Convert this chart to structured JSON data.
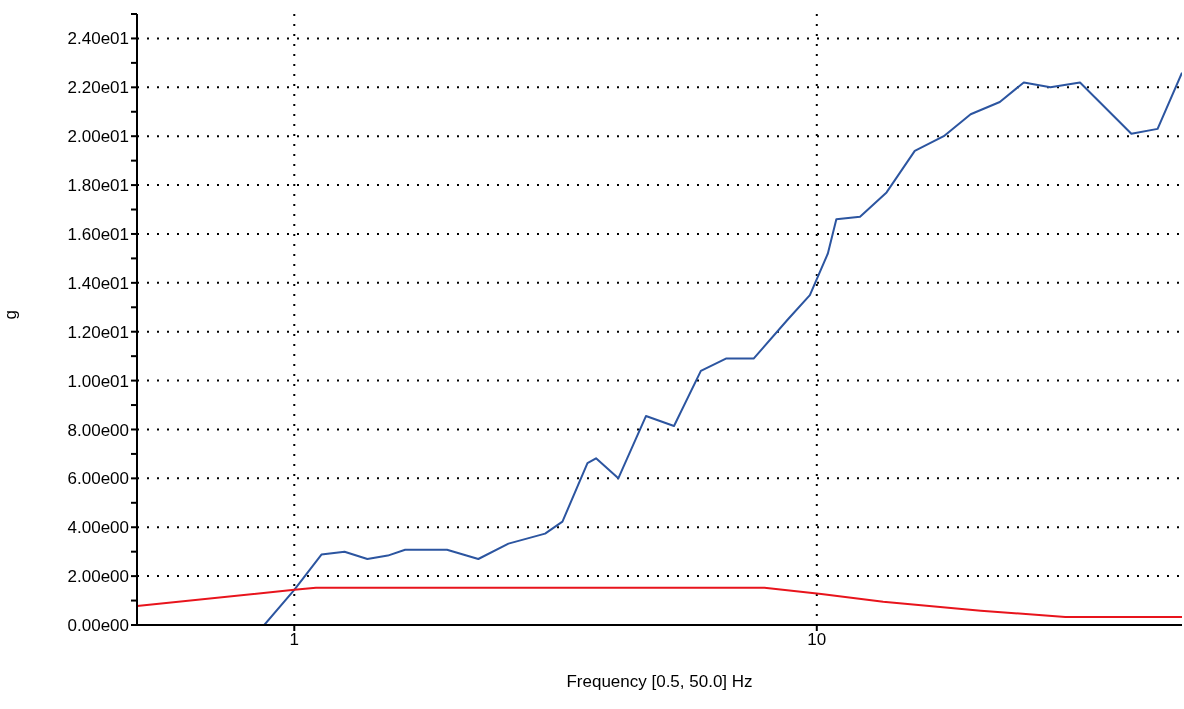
{
  "chart_data": {
    "type": "line",
    "xlabel": "Frequency [0.5, 50.0] Hz",
    "ylabel": "g",
    "log": "x",
    "xlim": [
      0.5,
      50
    ],
    "xticks": [
      1,
      10
    ],
    "ylim": [
      0,
      25
    ],
    "yticks": [
      {
        "value": 0,
        "label": "0.00e00"
      },
      {
        "value": 1,
        "label": null
      },
      {
        "value": 2,
        "label": "2.00e00"
      },
      {
        "value": 3,
        "label": null
      },
      {
        "value": 4,
        "label": "4.00e00"
      },
      {
        "value": 5,
        "label": null
      },
      {
        "value": 6,
        "label": "6.00e00"
      },
      {
        "value": 7,
        "label": null
      },
      {
        "value": 8,
        "label": "8.00e00"
      },
      {
        "value": 9,
        "label": null
      },
      {
        "value": 10,
        "label": "1.00e01"
      },
      {
        "value": 11,
        "label": null
      },
      {
        "value": 12,
        "label": "1.20e01"
      },
      {
        "value": 13,
        "label": null
      },
      {
        "value": 14,
        "label": "1.40e01"
      },
      {
        "value": 15,
        "label": null
      },
      {
        "value": 16,
        "label": "1.60e01"
      },
      {
        "value": 17,
        "label": null
      },
      {
        "value": 18,
        "label": "1.80e01"
      },
      {
        "value": 19,
        "label": null
      },
      {
        "value": 20,
        "label": "2.00e01"
      },
      {
        "value": 21,
        "label": null
      },
      {
        "value": 22,
        "label": "2.20e01"
      },
      {
        "value": 23,
        "label": null
      },
      {
        "value": 24,
        "label": "2.40e01"
      },
      {
        "value": 25,
        "label": null
      }
    ],
    "grid": true,
    "legend": false,
    "marker": "none",
    "line_style": "solid",
    "series": [
      {
        "color": "#2c55a0",
        "x": [
          0.5,
          0.876,
          1.0,
          1.127,
          1.248,
          1.38,
          1.51,
          1.63,
          1.96,
          2.25,
          2.57,
          3.02,
          3.26,
          3.64,
          3.78,
          4.17,
          4.71,
          5.33,
          6.0,
          6.7,
          7.57,
          8.8,
          9.7,
          10.5,
          10.9,
          12.1,
          13.6,
          15.4,
          17.5,
          19.7,
          22.4,
          24.9,
          28.0,
          31.9,
          40.0,
          44.9,
          50
        ],
        "values": [
          0,
          0,
          1.44,
          2.88,
          3.0,
          2.7,
          2.84,
          3.08,
          3.08,
          2.7,
          3.33,
          3.74,
          4.23,
          6.62,
          6.82,
          6.0,
          8.55,
          8.14,
          10.4,
          10.9,
          10.9,
          12.5,
          13.5,
          15.2,
          16.6,
          16.7,
          17.7,
          19.4,
          20.0,
          20.9,
          21.4,
          22.2,
          22.0,
          22.2,
          20.1,
          20.3,
          22.6
        ]
      },
      {
        "color": "#e8141c",
        "x": [
          0.5,
          1.0,
          1.1,
          7.94,
          10.2,
          13.4,
          20.6,
          29.9,
          50
        ],
        "values": [
          0.78,
          1.44,
          1.52,
          1.52,
          1.27,
          0.95,
          0.58,
          0.33,
          0.33
        ]
      }
    ]
  }
}
